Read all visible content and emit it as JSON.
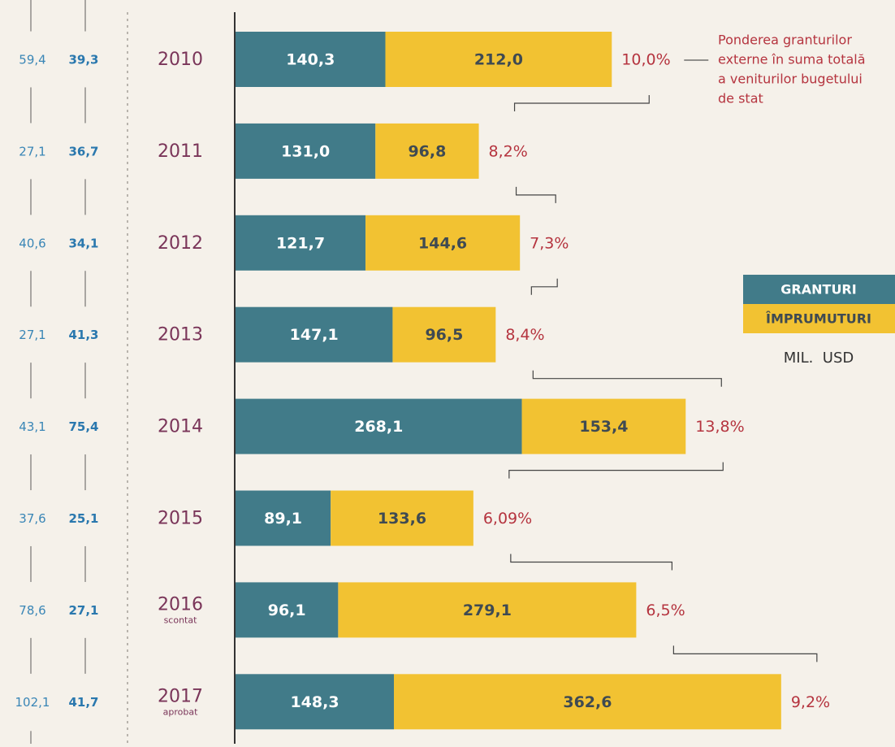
{
  "chart_data": {
    "type": "stacked-bar-horizontal",
    "categories": [
      "2010",
      "2011",
      "2012",
      "2013",
      "2014",
      "2015",
      "2016",
      "2017"
    ],
    "category_notes": [
      null,
      null,
      null,
      null,
      null,
      null,
      "scontat",
      "aprobat"
    ],
    "series": [
      {
        "name": "GRANTURI",
        "color": "#417b89",
        "values": [
          140.3,
          131.0,
          121.7,
          147.1,
          268.1,
          89.1,
          96.1,
          148.3
        ],
        "value_labels": [
          "140,3",
          "131,0",
          "121,7",
          "147,1",
          "268,1",
          "89,1",
          "96,1",
          "148,3"
        ]
      },
      {
        "name": "ÎMPRUMUTURI",
        "color": "#f2c232",
        "values": [
          212.0,
          96.8,
          144.6,
          96.5,
          153.4,
          133.6,
          279.1,
          362.6
        ],
        "value_labels": [
          "212,0",
          "96,8",
          "144,6",
          "96,5",
          "153,4",
          "133,6",
          "279,1",
          "362,6"
        ]
      }
    ],
    "share": {
      "values": [
        10.0,
        8.2,
        7.3,
        8.4,
        13.8,
        6.09,
        6.5,
        9.2
      ],
      "value_labels": [
        "10,0%",
        "8,2%",
        "7,3%",
        "8,4%",
        "13,8%",
        "6,09%",
        "6,5%",
        "9,2%"
      ],
      "color": "#b5343f"
    },
    "share_annotation": [
      "Ponderea granturilor",
      "externe în suma totală",
      "a veniturilor bugetului",
      "de stat"
    ],
    "left_column_1": {
      "values": [
        59.4,
        27.1,
        40.6,
        27.1,
        43.1,
        37.6,
        78.6,
        102.1
      ],
      "value_labels": [
        "59,4",
        "27,1",
        "40,6",
        "27,1",
        "43,1",
        "37,6",
        "78,6",
        "102,1"
      ]
    },
    "left_column_2": {
      "values": [
        39.3,
        36.7,
        34.1,
        41.3,
        75.4,
        25.1,
        27.1,
        41.7
      ],
      "value_labels": [
        "39,3",
        "36,7",
        "34,1",
        "41,3",
        "75,4",
        "25,1",
        "27,1",
        "41,7"
      ]
    },
    "unit": "MIL.  USD"
  }
}
